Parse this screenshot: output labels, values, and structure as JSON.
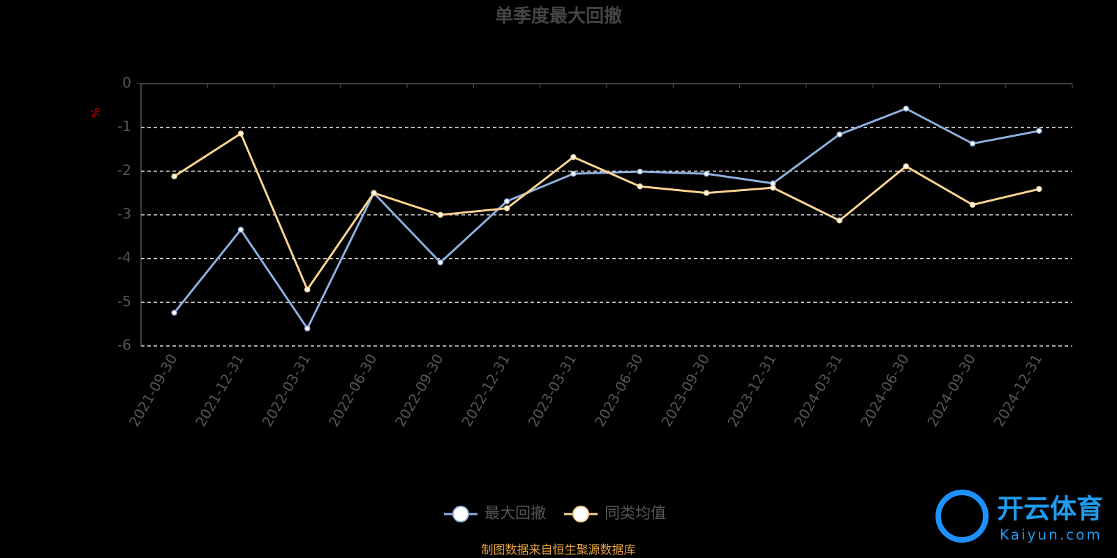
{
  "chart_data": {
    "type": "line",
    "title": "单季度最大回撤",
    "y_label": "%",
    "categories": [
      "2021-09-30",
      "2021-12-31",
      "2022-03-31",
      "2022-06-30",
      "2022-09-30",
      "2022-12-31",
      "2023-03-31",
      "2023-06-30",
      "2023-09-30",
      "2023-12-31",
      "2024-03-31",
      "2024-06-30",
      "2024-09-30",
      "2024-12-31"
    ],
    "series": [
      {
        "name": "最大回撤",
        "color": "#8fb1e0",
        "values": [
          -5.24,
          -3.34,
          -5.6,
          -2.5,
          -4.09,
          -2.69,
          -2.06,
          -2.01,
          -2.06,
          -2.28,
          -1.16,
          -0.57,
          -1.37,
          -1.08
        ]
      },
      {
        "name": "同类均值",
        "color": "#ffd591",
        "values": [
          -2.12,
          -1.14,
          -4.71,
          -2.5,
          -3.0,
          -2.85,
          -1.68,
          -2.35,
          -2.5,
          -2.38,
          -3.13,
          -1.89,
          -2.77,
          -2.41
        ]
      }
    ],
    "ylim": [
      -6,
      0
    ],
    "yticks": [
      0,
      -1,
      -2,
      -3,
      -4,
      -5,
      -6
    ],
    "grid": true,
    "source": "制图数据来自恒生聚源数据库",
    "watermark": {
      "brand": "开云体育",
      "site": "Kaiyun.com"
    }
  }
}
